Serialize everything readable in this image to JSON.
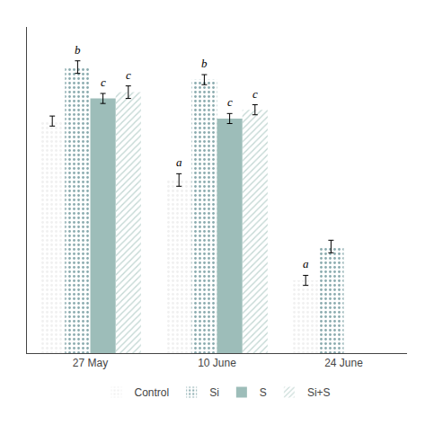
{
  "chart_data": {
    "type": "bar",
    "categories": [
      "27 May",
      "10 June",
      "24 June"
    ],
    "series": [
      {
        "name": "Control",
        "color": "#f0f0f0",
        "values": [
          18.5,
          13.8,
          5.8
        ],
        "errors": [
          0.4,
          0.5,
          0.4
        ],
        "letters": [
          null,
          "a",
          "a"
        ]
      },
      {
        "name": "Si",
        "color": "#8aabae",
        "values": [
          22.8,
          21.8,
          8.5
        ],
        "errors": [
          0.5,
          0.4,
          0.5
        ],
        "letters": [
          "b",
          "b",
          null
        ]
      },
      {
        "name": "S",
        "color": "#9dbdb9",
        "values": [
          20.3,
          18.7,
          null
        ],
        "errors": [
          0.4,
          0.4,
          null
        ],
        "letters": [
          "c",
          "c",
          null
        ]
      },
      {
        "name": "Si+S",
        "color": "#c0d5d1",
        "values": [
          20.8,
          19.4,
          null
        ],
        "errors": [
          0.5,
          0.4,
          null
        ],
        "letters": [
          "c",
          "c",
          null
        ]
      }
    ],
    "ylim": [
      0,
      26
    ],
    "yticks": [],
    "grid": false,
    "tick_labels": "x",
    "legend": "bottom"
  }
}
